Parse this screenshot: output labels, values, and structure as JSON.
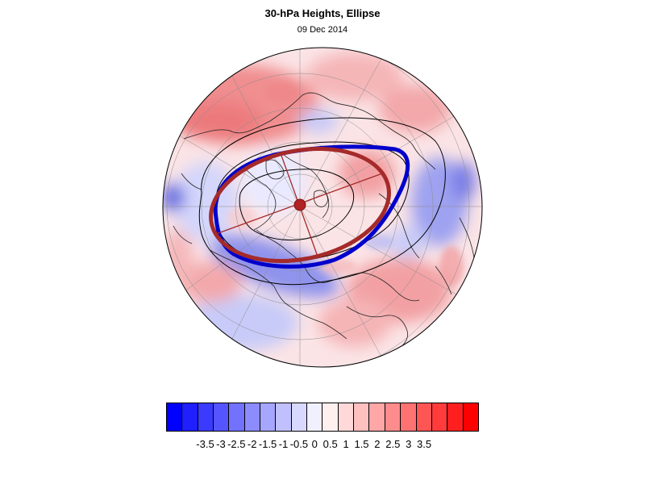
{
  "title": "30-hPa Heights, Ellipse",
  "date": "09 Dec 2014",
  "map": {
    "projection": "north polar stereographic",
    "field": "30-hPa height anomaly (standardized)",
    "negative_color": "#0000ff",
    "positive_color": "#ff0000",
    "contour_color": "#000000",
    "ellipse_observed_color": "#0000cc",
    "ellipse_fit_color": "#a52a2a",
    "center_marker_color": "#b22222"
  },
  "colorbar": {
    "colors": [
      "#0000ff",
      "#1f1fff",
      "#3b3bff",
      "#5555ff",
      "#7272ff",
      "#8c8cff",
      "#a6a6ff",
      "#c0c0ff",
      "#d9d9ff",
      "#f0f0ff",
      "#fff0f0",
      "#ffd9d9",
      "#ffc0c0",
      "#ffa6a6",
      "#ff8c8c",
      "#ff7272",
      "#ff5555",
      "#ff3b3b",
      "#ff1f1f",
      "#ff0000"
    ],
    "labels": [
      "-3.5",
      "-3",
      "-2.5",
      "-2",
      "-1.5",
      "-1",
      "-0.5",
      "0",
      "0.5",
      "1",
      "1.5",
      "2",
      "2.5",
      "3",
      "3.5"
    ]
  }
}
